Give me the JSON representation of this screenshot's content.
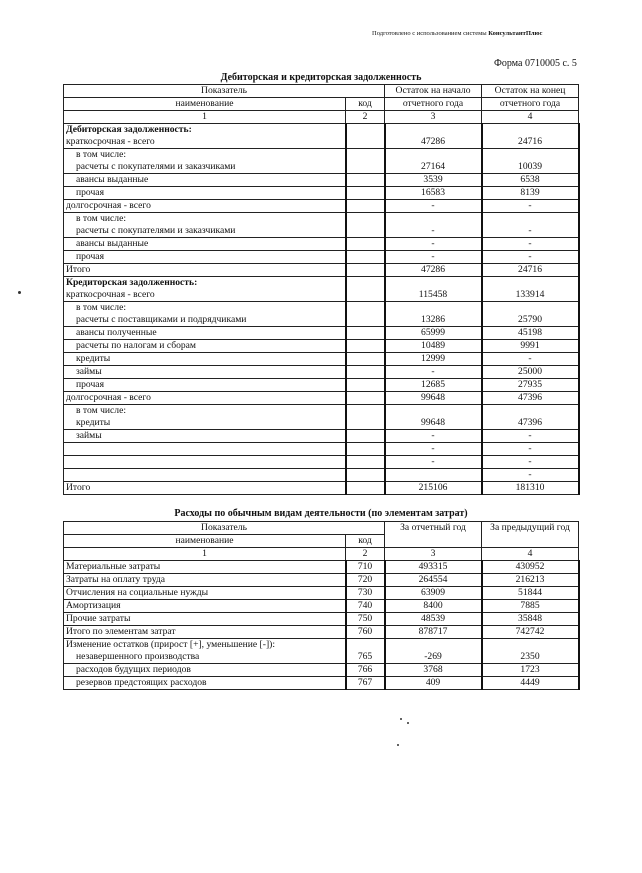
{
  "header": {
    "prepared": "Подготовлено с использованием системы ",
    "brand": "КонсультантПлюс"
  },
  "form_label": "Форма 0710005 с. 5",
  "table1": {
    "title": "Дебиторская и кредиторская задолженность",
    "head": {
      "indicator": "Показатель",
      "name": "наименование",
      "code": "код",
      "col3": "Остаток на начало отчетного года",
      "col3a": "Остаток на начало",
      "col3b": "отчетного года",
      "col4a": "Остаток на конец",
      "col4b": "отчетного года",
      "n1": "1",
      "n2": "2",
      "n3": "3",
      "n4": "4"
    },
    "rows": [
      {
        "lines": [
          "Дебиторская задолженность:",
          "краткосрочная - всего"
        ],
        "bold_first": true,
        "code": "",
        "v3": "47286",
        "v4": "24716"
      },
      {
        "lines": [
          "в том числе:",
          "расчеты с покупателями и заказчиками"
        ],
        "indent": true,
        "code": "",
        "v3": "27164",
        "v4": "10039"
      },
      {
        "lines": [
          "авансы выданные"
        ],
        "indent": true,
        "code": "",
        "v3": "3539",
        "v4": "6538"
      },
      {
        "lines": [
          "прочая"
        ],
        "indent": true,
        "code": "",
        "v3": "16583",
        "v4": "8139"
      },
      {
        "lines": [
          "долгосрочная - всего"
        ],
        "code": "",
        "v3": "-",
        "v4": "-"
      },
      {
        "lines": [
          "в том числе:",
          "расчеты с покупателями и заказчиками"
        ],
        "indent": true,
        "code": "",
        "v3": "-",
        "v4": "-"
      },
      {
        "lines": [
          "авансы выданные"
        ],
        "indent": true,
        "code": "",
        "v3": "-",
        "v4": "-"
      },
      {
        "lines": [
          "прочая"
        ],
        "indent": true,
        "code": "",
        "v3": "-",
        "v4": "-"
      },
      {
        "lines": [
          "Итого"
        ],
        "code": "",
        "v3": "47286",
        "v4": "24716"
      },
      {
        "lines": [
          "Кредиторская задолженность:",
          "краткосрочная - всего"
        ],
        "bold_first": true,
        "code": "",
        "v3": "115458",
        "v4": "133914"
      },
      {
        "lines": [
          "в том числе:",
          "расчеты с поставщиками и подрядчиками"
        ],
        "indent": true,
        "code": "",
        "v3": "13286",
        "v4": "25790"
      },
      {
        "lines": [
          "авансы полученные"
        ],
        "indent": true,
        "code": "",
        "v3": "65999",
        "v4": "45198"
      },
      {
        "lines": [
          "расчеты по налогам и сборам"
        ],
        "indent": true,
        "code": "",
        "v3": "10489",
        "v4": "9991"
      },
      {
        "lines": [
          "кредиты"
        ],
        "indent": true,
        "code": "",
        "v3": "12999",
        "v4": "-"
      },
      {
        "lines": [
          "займы"
        ],
        "indent": true,
        "code": "",
        "v3": "-",
        "v4": "25000"
      },
      {
        "lines": [
          "прочая"
        ],
        "indent": true,
        "code": "",
        "v3": "12685",
        "v4": "27935"
      },
      {
        "lines": [
          "долгосрочная - всего"
        ],
        "code": "",
        "v3": "99648",
        "v4": "47396"
      },
      {
        "lines": [
          "в том числе:",
          "кредиты"
        ],
        "indent": true,
        "code": "",
        "v3": "99648",
        "v4": "47396"
      },
      {
        "lines": [
          "займы"
        ],
        "indent": true,
        "code": "",
        "v3": "-",
        "v4": "-"
      },
      {
        "lines": [
          ""
        ],
        "code": "",
        "v3": "-",
        "v4": "-"
      },
      {
        "lines": [
          ""
        ],
        "code": "",
        "v3": "-",
        "v4": "-"
      },
      {
        "lines": [
          ""
        ],
        "code": "",
        "v3": "",
        "v4": "-"
      },
      {
        "lines": [
          "Итого"
        ],
        "code": "",
        "v3": "215106",
        "v4": "181310"
      }
    ]
  },
  "table2": {
    "title": "Расходы по обычным видам деятельности (по элементам затрат)",
    "head": {
      "indicator": "Показатель",
      "name": "наименование",
      "code": "код",
      "col3": "За отчетный год",
      "col4": "За предыдущий год",
      "n1": "1",
      "n2": "2",
      "n3": "3",
      "n4": "4"
    },
    "rows": [
      {
        "lines": [
          "Материальные затраты"
        ],
        "code": "710",
        "v3": "493315",
        "v4": "430952"
      },
      {
        "lines": [
          "Затраты на оплату труда"
        ],
        "code": "720",
        "v3": "264554",
        "v4": "216213"
      },
      {
        "lines": [
          "Отчисления на социальные нужды"
        ],
        "code": "730",
        "v3": "63909",
        "v4": "51844"
      },
      {
        "lines": [
          "Амортизация"
        ],
        "code": "740",
        "v3": "8400",
        "v4": "7885"
      },
      {
        "lines": [
          "Прочие затраты"
        ],
        "code": "750",
        "v3": "48539",
        "v4": "35848"
      },
      {
        "lines": [
          "Итого по элементам затрат"
        ],
        "code": "760",
        "v3": "878717",
        "v4": "742742"
      },
      {
        "lines": [
          "Изменение остатков (прирост [+], уменьшение [-]):",
          "незавершенного производства"
        ],
        "indent_last": true,
        "code": "765",
        "v3": "-269",
        "v4": "2350"
      },
      {
        "lines": [
          "расходов будущих периодов"
        ],
        "indent": true,
        "code": "766",
        "v3": "3768",
        "v4": "1723"
      },
      {
        "lines": [
          "резервов предстоящих расходов"
        ],
        "indent": true,
        "code": "767",
        "v3": "409",
        "v4": "4449"
      }
    ]
  }
}
